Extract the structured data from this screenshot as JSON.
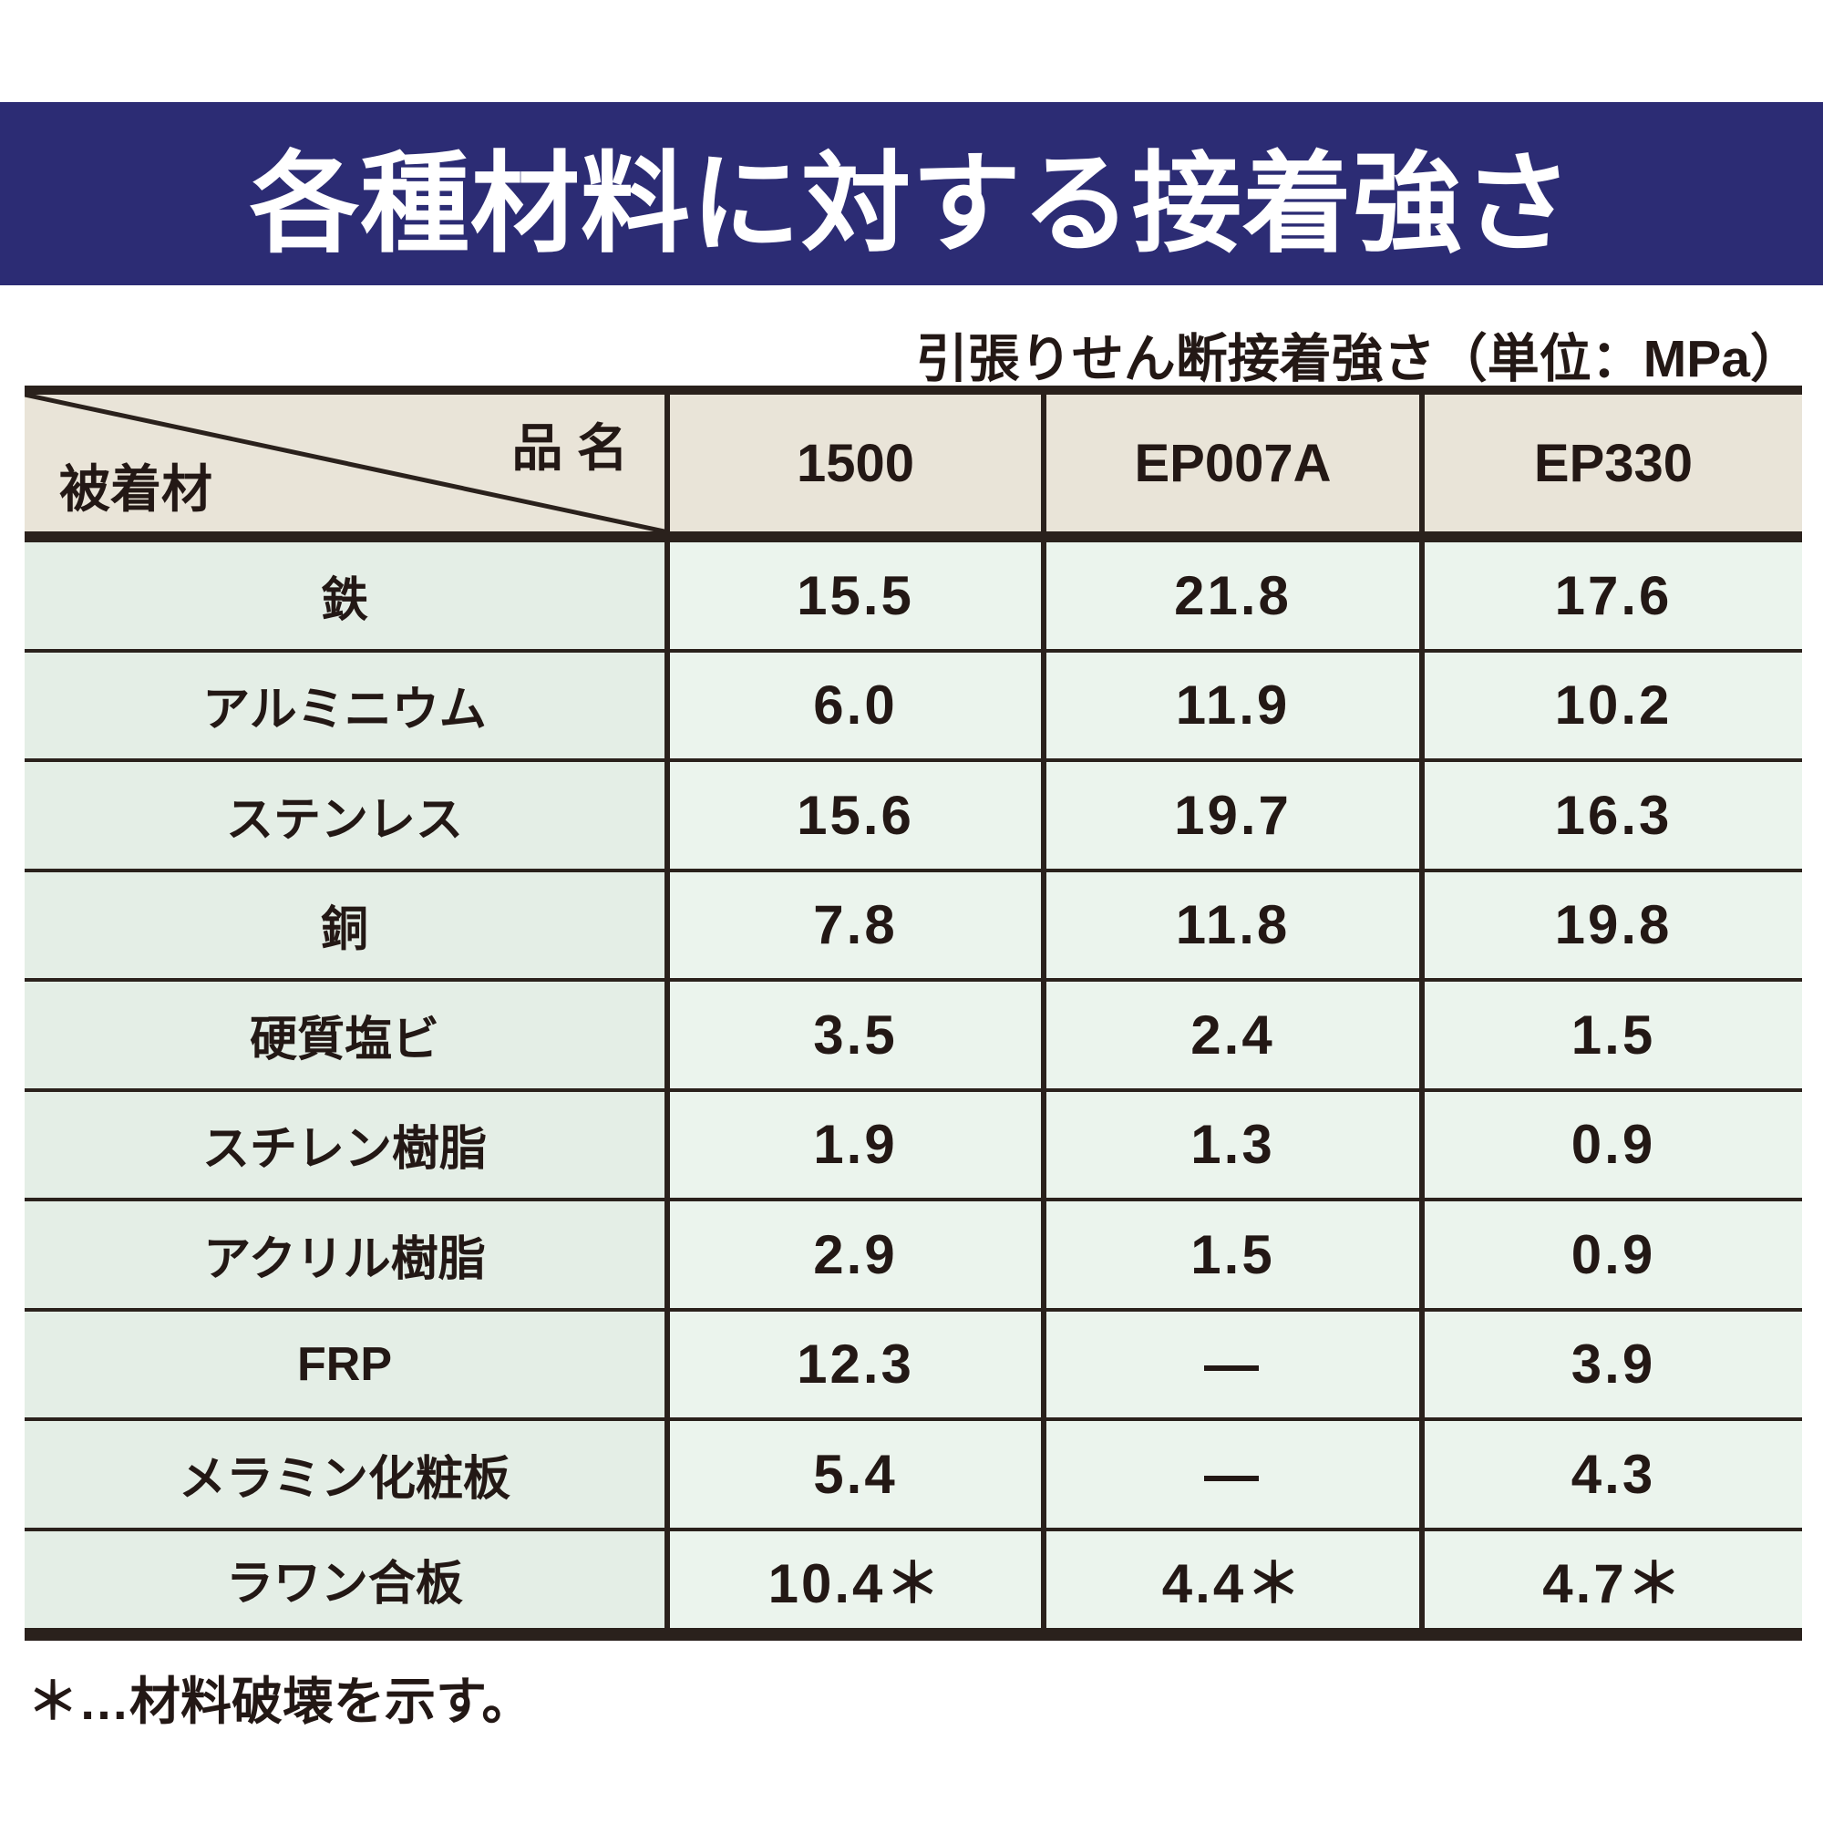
{
  "title": "各種材料に対する接着強さ",
  "subtitle": "引張りせん断接着強さ（単位：MPa）",
  "table": {
    "corner": {
      "top_right": "品 名",
      "bottom_left": "被着材"
    },
    "columns": [
      "1500",
      "EP007A",
      "EP330"
    ],
    "rows": [
      {
        "label": "鉄",
        "values": [
          "15.5",
          "21.8",
          "17.6"
        ]
      },
      {
        "label": "アルミニウム",
        "values": [
          "6.0",
          "11.9",
          "10.2"
        ]
      },
      {
        "label": "ステンレス",
        "values": [
          "15.6",
          "19.7",
          "16.3"
        ]
      },
      {
        "label": "銅",
        "values": [
          "7.8",
          "11.8",
          "19.8"
        ]
      },
      {
        "label": "硬質塩ビ",
        "values": [
          "3.5",
          "2.4",
          "1.5"
        ]
      },
      {
        "label": "スチレン樹脂",
        "values": [
          "1.9",
          "1.3",
          "0.9"
        ]
      },
      {
        "label": "アクリル樹脂",
        "values": [
          "2.9",
          "1.5",
          "0.9"
        ]
      },
      {
        "label": "FRP",
        "values": [
          "12.3",
          "—",
          "3.9"
        ]
      },
      {
        "label": "メラミン化粧板",
        "values": [
          "5.4",
          "—",
          "4.3"
        ]
      },
      {
        "label": "ラワン合板",
        "values": [
          "10.4＊",
          "4.4＊",
          "4.7＊"
        ]
      }
    ]
  },
  "footnote": "＊…材料破壊を示す。",
  "colors": {
    "navy": "#2c2c74",
    "line": "#2a211c",
    "ink": "#231815",
    "beige": "#e9e4d8",
    "green_label": "#e4eee6",
    "green_data": "#ebf4ed"
  }
}
